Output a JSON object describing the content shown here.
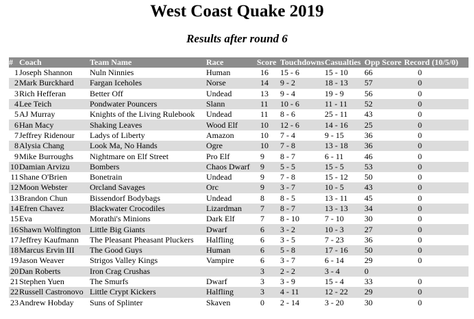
{
  "title": "West Coast Quake 2019",
  "subtitle": "Results after round 6",
  "columns": {
    "num": "#",
    "coach": "Coach",
    "team": "Team Name",
    "race": "Race",
    "score": "Score",
    "touchdowns": "Touchdowns",
    "casualties": "Casualties",
    "opp_score": "Opp Score",
    "record": "Record (10/5/0)"
  },
  "rows": [
    {
      "num": "1",
      "coach": "Joseph Shannon",
      "team": "Nuln Ninnies",
      "race": "Human",
      "score": "16",
      "touchdowns": "15 - 6",
      "casualties": "15 - 10",
      "opp_score": "66",
      "record": "0"
    },
    {
      "num": "2",
      "coach": "Mark Burckhard",
      "team": "Fargan Iceholes",
      "race": "Norse",
      "score": "14",
      "touchdowns": "9 - 2",
      "casualties": "18 - 13",
      "opp_score": "57",
      "record": "0"
    },
    {
      "num": "3",
      "coach": "Rich Hefferan",
      "team": "Better Off",
      "race": "Undead",
      "score": "13",
      "touchdowns": "9 - 4",
      "casualties": "19 - 9",
      "opp_score": "56",
      "record": "0"
    },
    {
      "num": "4",
      "coach": "Lee Teich",
      "team": "Pondwater Pouncers",
      "race": "Slann",
      "score": "11",
      "touchdowns": "10 - 6",
      "casualties": "11 - 11",
      "opp_score": "52",
      "record": "0"
    },
    {
      "num": "5",
      "coach": "AJ Murray",
      "team": "Knights of the Living Rulebook",
      "race": "Undead",
      "score": "11",
      "touchdowns": "8 - 6",
      "casualties": "25 - 11",
      "opp_score": "43",
      "record": "0"
    },
    {
      "num": "6",
      "coach": "Han Macy",
      "team": "Shaking Leaves",
      "race": "Wood Elf",
      "score": "10",
      "touchdowns": "12 - 6",
      "casualties": "14 - 16",
      "opp_score": "25",
      "record": "0"
    },
    {
      "num": "7",
      "coach": "Jeffrey Ridenour",
      "team": "Ladys of Liberty",
      "race": "Amazon",
      "score": "10",
      "touchdowns": "7 - 4",
      "casualties": "9 - 15",
      "opp_score": "36",
      "record": "0"
    },
    {
      "num": "8",
      "coach": "Alysia Chang",
      "team": "Look Ma, No Hands",
      "race": "Ogre",
      "score": "10",
      "touchdowns": "7 - 8",
      "casualties": "13 - 18",
      "opp_score": "36",
      "record": "0"
    },
    {
      "num": "9",
      "coach": "Mike Burroughs",
      "team": "Nightmare on Elf Street",
      "race": "Pro Elf",
      "score": "9",
      "touchdowns": "8 - 7",
      "casualties": "6 - 11",
      "opp_score": "46",
      "record": "0"
    },
    {
      "num": "10",
      "coach": "Damian Arvizu",
      "team": "Bombers",
      "race": "Chaos Dwarf",
      "score": "9",
      "touchdowns": "5 - 5",
      "casualties": "15 - 5",
      "opp_score": "53",
      "record": "0"
    },
    {
      "num": "11",
      "coach": "Shane O'Brien",
      "team": "Bonetrain",
      "race": "Undead",
      "score": "9",
      "touchdowns": "7 - 8",
      "casualties": "15 - 12",
      "opp_score": "50",
      "record": "0"
    },
    {
      "num": "12",
      "coach": "Moon Webster",
      "team": "Orcland Savages",
      "race": "Orc",
      "score": "9",
      "touchdowns": "3 - 7",
      "casualties": "10 - 5",
      "opp_score": "43",
      "record": "0"
    },
    {
      "num": "13",
      "coach": "Brandon Chun",
      "team": "Bissendorf Bodybags",
      "race": "Undead",
      "score": "8",
      "touchdowns": "8 - 5",
      "casualties": "13 - 11",
      "opp_score": "45",
      "record": "0"
    },
    {
      "num": "14",
      "coach": "Efren Chavez",
      "team": "Blackwater Crocodiles",
      "race": "Lizardman",
      "score": "7",
      "touchdowns": "8 - 7",
      "casualties": "13 - 13",
      "opp_score": "34",
      "record": "0"
    },
    {
      "num": "15",
      "coach": "Eva",
      "team": "Morathi's Minions",
      "race": "Dark Elf",
      "score": "7",
      "touchdowns": "8 - 10",
      "casualties": "7 - 10",
      "opp_score": "30",
      "record": "0"
    },
    {
      "num": "16",
      "coach": "Shawn Wolfington",
      "team": "Little Big Giants",
      "race": "Dwarf",
      "score": "6",
      "touchdowns": "3 - 2",
      "casualties": "10 - 3",
      "opp_score": "27",
      "record": "0"
    },
    {
      "num": "17",
      "coach": "Jeffrey Kaufmann",
      "team": "The Pleasant Pheasant Pluckers",
      "race": "Halfling",
      "score": "6",
      "touchdowns": "3 - 5",
      "casualties": "7 - 23",
      "opp_score": "36",
      "record": "0"
    },
    {
      "num": "18",
      "coach": "Marcus Ervin III",
      "team": "The Good Guys",
      "race": "Human",
      "score": "6",
      "touchdowns": "5 - 8",
      "casualties": "17 - 16",
      "opp_score": "50",
      "record": "0"
    },
    {
      "num": "19",
      "coach": "Jason Weaver",
      "team": "Strigos Valley Kings",
      "race": "Vampire",
      "score": "6",
      "touchdowns": "3 - 7",
      "casualties": "6 - 14",
      "opp_score": "29",
      "record": "0"
    },
    {
      "num": "20",
      "coach": "Dan Roberts",
      "team": "Iron Crag Crushas",
      "race": "",
      "score": "3",
      "touchdowns": "2 - 2",
      "casualties": "3 - 4",
      "opp_score": "0",
      "record": ""
    },
    {
      "num": "21",
      "coach": "Stephen Yuen",
      "team": "The Smurfs",
      "race": "Dwarf",
      "score": "3",
      "touchdowns": "3 - 9",
      "casualties": "15 - 4",
      "opp_score": "33",
      "record": "0"
    },
    {
      "num": "22",
      "coach": "Russell Castronovo",
      "team": "Little Crypt Kickers",
      "race": "Halfling",
      "score": "3",
      "touchdowns": "4 - 11",
      "casualties": "12 - 22",
      "opp_score": "29",
      "record": "0"
    },
    {
      "num": "23",
      "coach": "Andrew Hobday",
      "team": "Suns of Splinter",
      "race": "Skaven",
      "score": "0",
      "touchdowns": "2 - 14",
      "casualties": "3 - 20",
      "opp_score": "30",
      "record": "0"
    }
  ]
}
